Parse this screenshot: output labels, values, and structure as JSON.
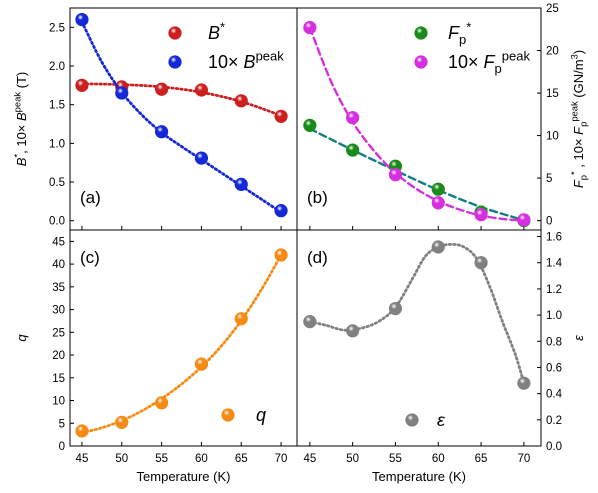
{
  "chart_data": [
    {
      "panel_label": "(a)",
      "type": "scatter",
      "x_label": "",
      "y_label_parts": [
        [
          "B",
          "i",
          "n"
        ],
        [
          "*",
          "",
          "sup"
        ],
        [
          ", 10× ",
          "",
          "n"
        ],
        [
          "B",
          "i",
          "n"
        ],
        [
          "peak",
          "",
          "sup"
        ],
        [
          " (T)",
          "",
          "n"
        ]
      ],
      "xlim": [
        43.5,
        72
      ],
      "ylim": [
        -0.12,
        2.75
      ],
      "x_ticks": [
        45,
        50,
        55,
        60,
        65,
        70
      ],
      "x_tick_labels": [
        "",
        "",
        "",
        "",
        "",
        ""
      ],
      "y_ticks": [
        0.0,
        0.5,
        1.0,
        1.5,
        2.0,
        2.5
      ],
      "y_tick_labels": [
        "0.0",
        "0.5",
        "1.0",
        "1.5",
        "2.0",
        "2.5"
      ],
      "y_axis_side": "left",
      "legend_position": "top-right",
      "series": [
        {
          "legend_parts": [
            [
              "B",
              "i",
              "n"
            ],
            [
              "*",
              "",
              "sup"
            ]
          ],
          "color": "#cc1f1f",
          "line_style": "dotted",
          "x": [
            45,
            50,
            55,
            60,
            65,
            70
          ],
          "y": [
            1.75,
            1.73,
            1.7,
            1.69,
            1.55,
            1.35
          ],
          "fit": [
            [
              45,
              1.77
            ],
            [
              50,
              1.76
            ],
            [
              55,
              1.73
            ],
            [
              60,
              1.66
            ],
            [
              65,
              1.54
            ],
            [
              70,
              1.36
            ]
          ]
        },
        {
          "legend_parts": [
            [
              "10× ",
              "",
              "n"
            ],
            [
              "B",
              "i",
              "n"
            ],
            [
              "peak",
              "",
              "sup"
            ]
          ],
          "color": "#1428d8",
          "line_style": "dotted",
          "x": [
            45,
            50,
            55,
            60,
            65,
            70
          ],
          "y": [
            2.6,
            1.65,
            1.15,
            0.81,
            0.47,
            0.13
          ],
          "fit": [
            [
              45,
              2.57
            ],
            [
              47.5,
              2.05
            ],
            [
              50,
              1.66
            ],
            [
              52.5,
              1.37
            ],
            [
              55,
              1.14
            ],
            [
              57.5,
              0.96
            ],
            [
              60,
              0.79
            ],
            [
              62.5,
              0.62
            ],
            [
              65,
              0.45
            ],
            [
              67.5,
              0.28
            ],
            [
              70,
              0.11
            ]
          ]
        }
      ]
    },
    {
      "panel_label": "(b)",
      "type": "scatter",
      "x_label": "",
      "y_label_parts": [
        [
          "F",
          "i",
          "n"
        ],
        [
          "p",
          "",
          "sub"
        ],
        [
          "*",
          "",
          "sup"
        ],
        [
          " , 10× ",
          "",
          "n"
        ],
        [
          "F",
          "i",
          "n"
        ],
        [
          "p",
          "",
          "sub"
        ],
        [
          "peak",
          "",
          "sup"
        ],
        [
          " (GN/m",
          "",
          "n"
        ],
        [
          "3",
          "",
          "sup"
        ],
        [
          ")",
          "",
          "n"
        ]
      ],
      "xlim": [
        43.5,
        72
      ],
      "ylim": [
        -1.1,
        25
      ],
      "x_ticks": [
        45,
        50,
        55,
        60,
        65,
        70
      ],
      "x_tick_labels": [
        "",
        "",
        "",
        "",
        "",
        ""
      ],
      "y_ticks": [
        0,
        5,
        10,
        15,
        20,
        25
      ],
      "y_tick_labels": [
        "0",
        "5",
        "10",
        "15",
        "20",
        "25"
      ],
      "y_axis_side": "right",
      "legend_position": "top-right",
      "series": [
        {
          "legend_parts": [
            [
              "F",
              "i",
              "n"
            ],
            [
              "p",
              "",
              "sub"
            ],
            [
              "*",
              "",
              "sup"
            ]
          ],
          "color": "#1a8a1a",
          "line_style": "dashed",
          "line_color": "#138080",
          "x": [
            45,
            50,
            55,
            60,
            65,
            70
          ],
          "y": [
            11.2,
            8.3,
            6.4,
            3.7,
            1.0,
            0.0
          ],
          "fit": [
            [
              45,
              10.8
            ],
            [
              50,
              8.3
            ],
            [
              55,
              5.9
            ],
            [
              60,
              3.6
            ],
            [
              65,
              1.6
            ],
            [
              70,
              0.05
            ]
          ]
        },
        {
          "legend_parts": [
            [
              "10× ",
              "",
              "n"
            ],
            [
              "F",
              "i",
              "n"
            ],
            [
              "p",
              "",
              "sub"
            ],
            [
              "peak",
              "",
              "sup"
            ]
          ],
          "color": "#d62fe0",
          "line_style": "dashed",
          "line_color": "#d62fe0",
          "x": [
            45,
            50,
            55,
            60,
            65,
            70
          ],
          "y": [
            22.7,
            12.1,
            5.4,
            2.1,
            0.7,
            0.1
          ],
          "fit": [
            [
              45,
              22.7
            ],
            [
              47.5,
              16.3
            ],
            [
              50,
              11.6
            ],
            [
              52.5,
              8.2
            ],
            [
              55,
              5.6
            ],
            [
              57.5,
              3.7
            ],
            [
              60,
              2.3
            ],
            [
              62.5,
              1.3
            ],
            [
              65,
              0.6
            ],
            [
              67.5,
              0.2
            ],
            [
              70,
              0.0
            ]
          ]
        }
      ]
    },
    {
      "panel_label": "(c)",
      "type": "scatter",
      "x_label": "Temperature (K)",
      "y_label_parts": [
        [
          "q",
          "i",
          "n"
        ]
      ],
      "xlim": [
        43.5,
        72
      ],
      "ylim": [
        0,
        47.5
      ],
      "x_ticks": [
        45,
        50,
        55,
        60,
        65,
        70
      ],
      "x_tick_labels": [
        "45",
        "50",
        "55",
        "60",
        "65",
        "70"
      ],
      "y_ticks": [
        0,
        5,
        10,
        15,
        20,
        25,
        30,
        35,
        40,
        45
      ],
      "y_tick_labels": [
        "0",
        "5",
        "10",
        "15",
        "20",
        "25",
        "30",
        "35",
        "40",
        "45"
      ],
      "y_axis_side": "left",
      "legend_position": "bottom-right",
      "series": [
        {
          "legend_parts": [
            [
              "q",
              "i",
              "n"
            ]
          ],
          "color": "#f58a14",
          "line_style": "dotted",
          "x": [
            45,
            50,
            55,
            60,
            65,
            70
          ],
          "y": [
            3.3,
            5.2,
            9.5,
            18.0,
            28.0,
            42.0
          ],
          "fit": [
            [
              45,
              2.9
            ],
            [
              47.5,
              4.0
            ],
            [
              50,
              5.6
            ],
            [
              52.5,
              7.7
            ],
            [
              55,
              10.4
            ],
            [
              57.5,
              13.6
            ],
            [
              60,
              17.4
            ],
            [
              62.5,
              22.0
            ],
            [
              65,
              27.6
            ],
            [
              67.5,
              34.3
            ],
            [
              70,
              42.0
            ]
          ]
        }
      ]
    },
    {
      "panel_label": "(d)",
      "type": "scatter",
      "x_label": "Temperature (K)",
      "y_label_parts": [
        [
          "ε",
          "i",
          "n"
        ]
      ],
      "xlim": [
        43.5,
        72
      ],
      "ylim": [
        0,
        1.65
      ],
      "x_ticks": [
        45,
        50,
        55,
        60,
        65,
        70
      ],
      "x_tick_labels": [
        "45",
        "50",
        "55",
        "60",
        "65",
        "70"
      ],
      "y_ticks": [
        0.0,
        0.2,
        0.4,
        0.6,
        0.8,
        1.0,
        1.2,
        1.4,
        1.6
      ],
      "y_tick_labels": [
        "0.0",
        "0.2",
        "0.4",
        "0.6",
        "0.8",
        "1.0",
        "1.2",
        "1.4",
        "1.6"
      ],
      "y_axis_side": "right",
      "legend_position": "bottom-right",
      "series": [
        {
          "legend_parts": [
            [
              "ε",
              "i",
              "n"
            ]
          ],
          "color": "#808080",
          "line_style": "dotted",
          "x": [
            45,
            50,
            55,
            60,
            65,
            70
          ],
          "y": [
            0.95,
            0.88,
            1.05,
            1.52,
            1.4,
            0.48
          ],
          "fit": [
            [
              45,
              0.95
            ],
            [
              47,
              0.92
            ],
            [
              49,
              0.885
            ],
            [
              51,
              0.9
            ],
            [
              53,
              0.95
            ],
            [
              55,
              1.06
            ],
            [
              57,
              1.28
            ],
            [
              58.5,
              1.45
            ],
            [
              60,
              1.52
            ],
            [
              61.5,
              1.54
            ],
            [
              63,
              1.52
            ],
            [
              64.5,
              1.43
            ],
            [
              66,
              1.22
            ],
            [
              67.5,
              0.95
            ],
            [
              69,
              0.7
            ],
            [
              70,
              0.48
            ]
          ]
        }
      ]
    }
  ]
}
